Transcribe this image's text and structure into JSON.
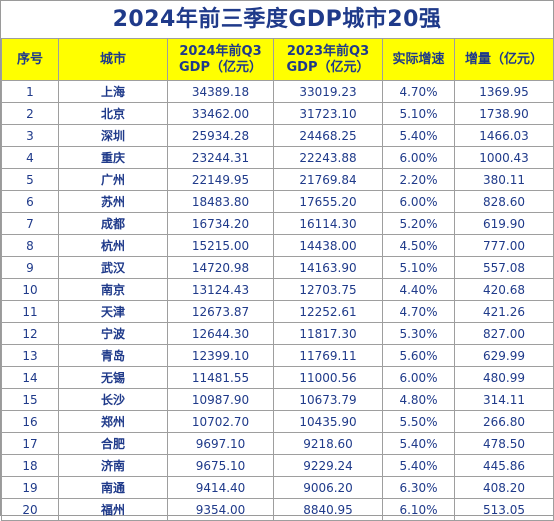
{
  "title": "2024年前三季度GDP城市20强",
  "headers": {
    "rank": "序号",
    "city": "城市",
    "gdp2024_line1": "2024年前Q3",
    "gdp2024_line2": "GDP（亿元）",
    "gdp2023_line1": "2023年前Q3",
    "gdp2023_line2": "GDP（亿元）",
    "growth": "实际增速",
    "increase": "增量（亿元）"
  },
  "rows": [
    {
      "rank": "1",
      "city": "上海",
      "gdp2024": "34389.18",
      "gdp2023": "33019.23",
      "growth": "4.70%",
      "increase": "1369.95"
    },
    {
      "rank": "2",
      "city": "北京",
      "gdp2024": "33462.00",
      "gdp2023": "31723.10",
      "growth": "5.10%",
      "increase": "1738.90"
    },
    {
      "rank": "3",
      "city": "深圳",
      "gdp2024": "25934.28",
      "gdp2023": "24468.25",
      "growth": "5.40%",
      "increase": "1466.03"
    },
    {
      "rank": "4",
      "city": "重庆",
      "gdp2024": "23244.31",
      "gdp2023": "22243.88",
      "growth": "6.00%",
      "increase": "1000.43"
    },
    {
      "rank": "5",
      "city": "广州",
      "gdp2024": "22149.95",
      "gdp2023": "21769.84",
      "growth": "2.20%",
      "increase": "380.11"
    },
    {
      "rank": "6",
      "city": "苏州",
      "gdp2024": "18483.80",
      "gdp2023": "17655.20",
      "growth": "6.00%",
      "increase": "828.60"
    },
    {
      "rank": "7",
      "city": "成都",
      "gdp2024": "16734.20",
      "gdp2023": "16114.30",
      "growth": "5.20%",
      "increase": "619.90"
    },
    {
      "rank": "8",
      "city": "杭州",
      "gdp2024": "15215.00",
      "gdp2023": "14438.00",
      "growth": "4.50%",
      "increase": "777.00"
    },
    {
      "rank": "9",
      "city": "武汉",
      "gdp2024": "14720.98",
      "gdp2023": "14163.90",
      "growth": "5.10%",
      "increase": "557.08"
    },
    {
      "rank": "10",
      "city": "南京",
      "gdp2024": "13124.43",
      "gdp2023": "12703.75",
      "growth": "4.40%",
      "increase": "420.68"
    },
    {
      "rank": "11",
      "city": "天津",
      "gdp2024": "12673.87",
      "gdp2023": "12252.61",
      "growth": "4.70%",
      "increase": "421.26"
    },
    {
      "rank": "12",
      "city": "宁波",
      "gdp2024": "12644.30",
      "gdp2023": "11817.30",
      "growth": "5.30%",
      "increase": "827.00"
    },
    {
      "rank": "13",
      "city": "青岛",
      "gdp2024": "12399.10",
      "gdp2023": "11769.11",
      "growth": "5.60%",
      "increase": "629.99"
    },
    {
      "rank": "14",
      "city": "无锡",
      "gdp2024": "11481.55",
      "gdp2023": "11000.56",
      "growth": "6.00%",
      "increase": "480.99"
    },
    {
      "rank": "15",
      "city": "长沙",
      "gdp2024": "10987.90",
      "gdp2023": "10673.79",
      "growth": "4.80%",
      "increase": "314.11"
    },
    {
      "rank": "16",
      "city": "郑州",
      "gdp2024": "10702.70",
      "gdp2023": "10435.90",
      "growth": "5.50%",
      "increase": "266.80"
    },
    {
      "rank": "17",
      "city": "合肥",
      "gdp2024": "9697.10",
      "gdp2023": "9218.60",
      "growth": "5.40%",
      "increase": "478.50"
    },
    {
      "rank": "18",
      "city": "济南",
      "gdp2024": "9675.10",
      "gdp2023": "9229.24",
      "growth": "5.40%",
      "increase": "445.86"
    },
    {
      "rank": "19",
      "city": "南通",
      "gdp2024": "9414.40",
      "gdp2023": "9006.20",
      "growth": "6.30%",
      "increase": "408.20"
    },
    {
      "rank": "20",
      "city": "福州",
      "gdp2024": "9354.00",
      "gdp2023": "8840.95",
      "growth": "6.10%",
      "increase": "513.05"
    }
  ],
  "colors": {
    "header_bg": "#ffff00",
    "text": "#1f3a8a",
    "border": "#9e9e9e"
  }
}
